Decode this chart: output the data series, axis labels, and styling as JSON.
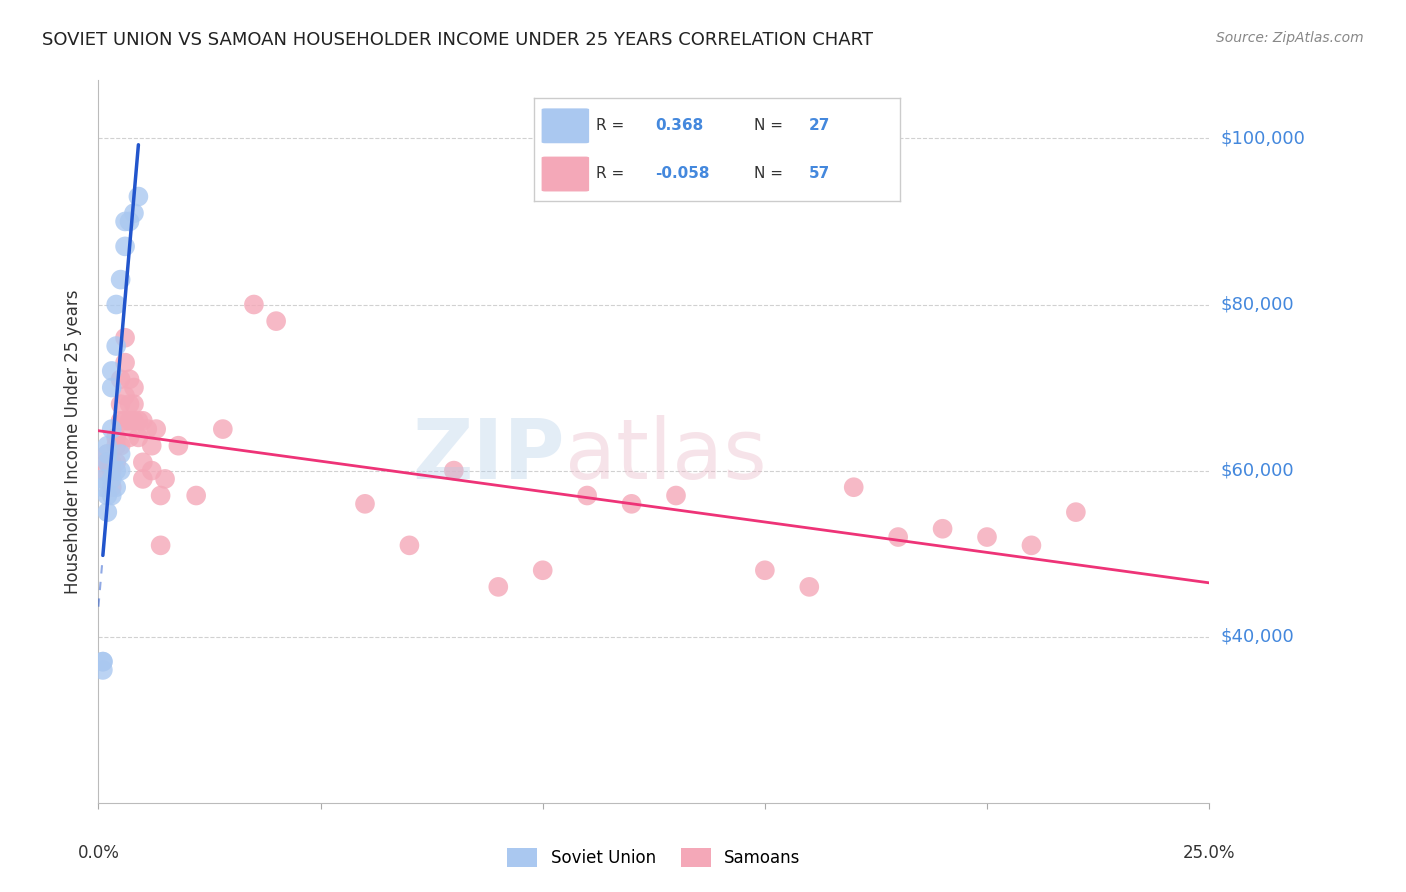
{
  "title": "SOVIET UNION VS SAMOAN HOUSEHOLDER INCOME UNDER 25 YEARS CORRELATION CHART",
  "source": "Source: ZipAtlas.com",
  "ylabel": "Householder Income Under 25 years",
  "xmin": 0.0,
  "xmax": 0.25,
  "ymin": 20000,
  "ymax": 107000,
  "yticks": [
    40000,
    60000,
    80000,
    100000
  ],
  "ytick_labels": [
    "$40,000",
    "$60,000",
    "$80,000",
    "$100,000"
  ],
  "background_color": "#ffffff",
  "grid_color": "#cccccc",
  "soviet_color": "#aac8f0",
  "samoan_color": "#f4a8b8",
  "soviet_R": "0.368",
  "soviet_N": "27",
  "samoan_R": "-0.058",
  "samoan_N": "57",
  "soviet_line_color": "#2255cc",
  "samoan_line_color": "#ee3377",
  "soviet_scatter_x": [
    0.001,
    0.001,
    0.001,
    0.001,
    0.001,
    0.002,
    0.002,
    0.002,
    0.002,
    0.002,
    0.003,
    0.003,
    0.003,
    0.003,
    0.003,
    0.004,
    0.004,
    0.004,
    0.004,
    0.005,
    0.005,
    0.005,
    0.006,
    0.006,
    0.007,
    0.008,
    0.009
  ],
  "soviet_scatter_y": [
    37000,
    36000,
    58000,
    59000,
    37000,
    62000,
    63000,
    61000,
    57000,
    55000,
    65000,
    70000,
    72000,
    57000,
    59000,
    75000,
    80000,
    60000,
    58000,
    83000,
    60000,
    62000,
    87000,
    90000,
    90000,
    91000,
    93000
  ],
  "samoan_scatter_x": [
    0.001,
    0.002,
    0.002,
    0.003,
    0.003,
    0.003,
    0.004,
    0.004,
    0.004,
    0.005,
    0.005,
    0.005,
    0.005,
    0.006,
    0.006,
    0.006,
    0.006,
    0.007,
    0.007,
    0.007,
    0.007,
    0.008,
    0.008,
    0.008,
    0.009,
    0.009,
    0.01,
    0.01,
    0.01,
    0.011,
    0.012,
    0.012,
    0.013,
    0.014,
    0.014,
    0.015,
    0.018,
    0.022,
    0.028,
    0.035,
    0.04,
    0.06,
    0.07,
    0.08,
    0.09,
    0.1,
    0.11,
    0.12,
    0.13,
    0.15,
    0.16,
    0.17,
    0.18,
    0.19,
    0.2,
    0.21,
    0.22
  ],
  "samoan_scatter_y": [
    60000,
    62000,
    61000,
    60000,
    61000,
    58000,
    63000,
    64000,
    61000,
    63000,
    66000,
    68000,
    71000,
    66000,
    69000,
    73000,
    76000,
    64000,
    66000,
    68000,
    71000,
    66000,
    68000,
    70000,
    64000,
    66000,
    61000,
    59000,
    66000,
    65000,
    63000,
    60000,
    65000,
    51000,
    57000,
    59000,
    63000,
    57000,
    65000,
    80000,
    78000,
    56000,
    51000,
    60000,
    46000,
    48000,
    57000,
    56000,
    57000,
    48000,
    46000,
    58000,
    52000,
    53000,
    52000,
    51000,
    55000
  ]
}
